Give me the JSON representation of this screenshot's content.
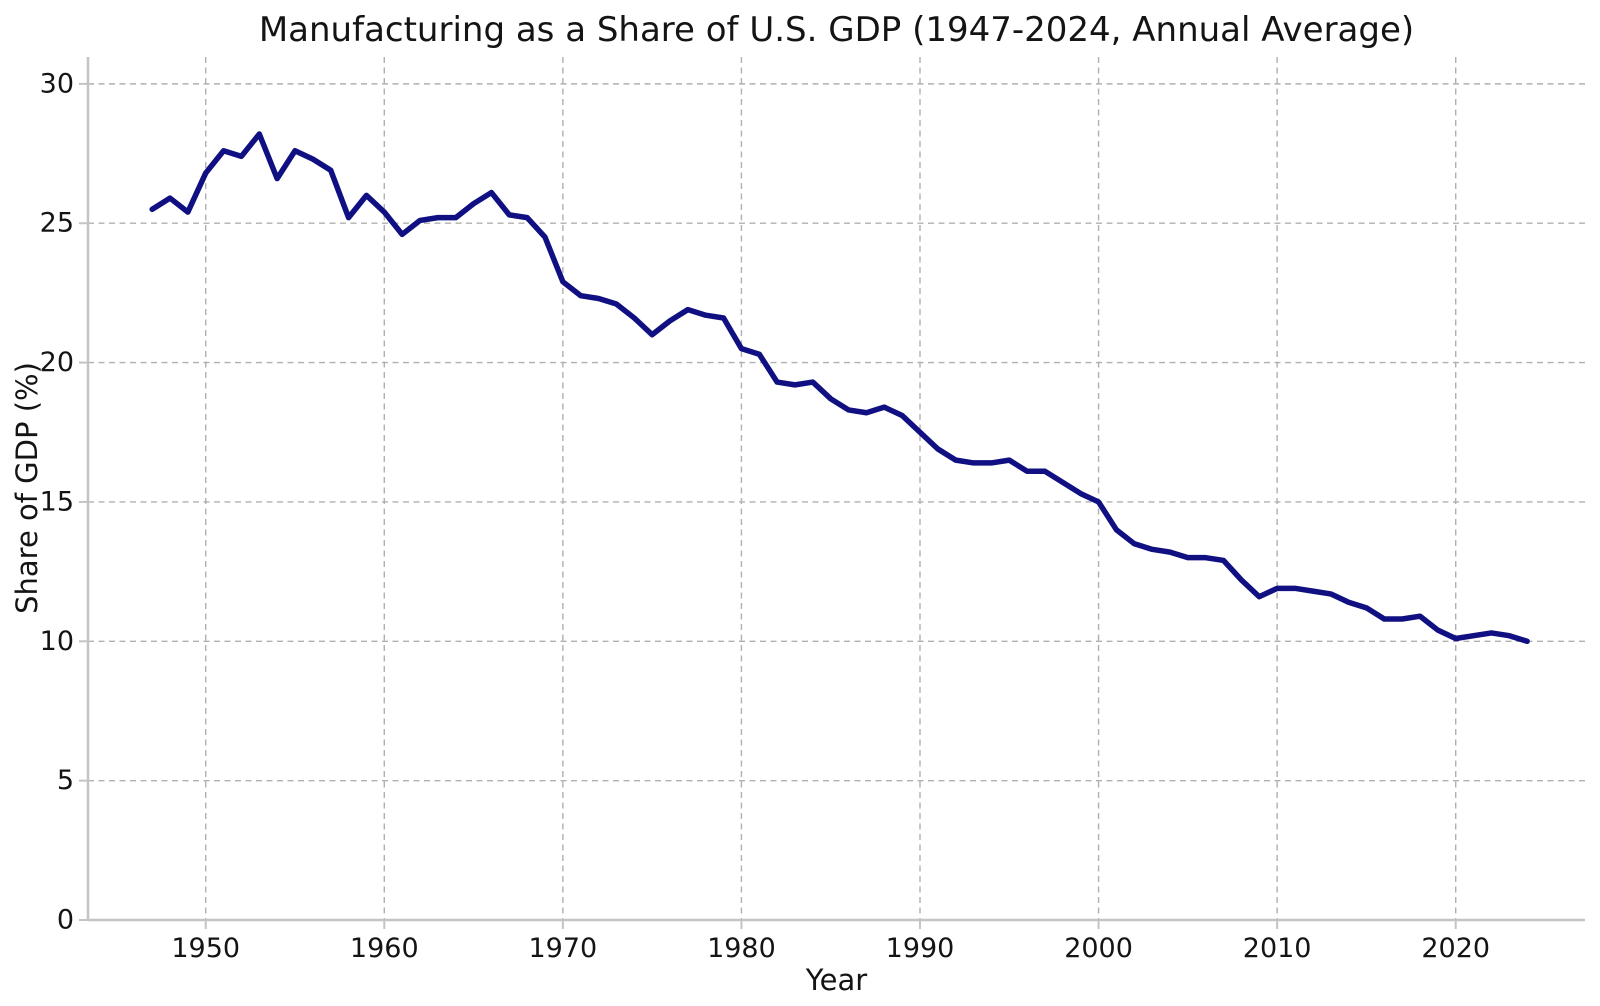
{
  "page": {
    "background": "#ffffff"
  },
  "chart_data": {
    "type": "line",
    "title": "Manufacturing as a Share of U.S. GDP (1947-2024, Annual Average)",
    "xlabel": "Year",
    "ylabel": "Share of GDP (%)",
    "years": [
      1947,
      1948,
      1949,
      1950,
      1951,
      1952,
      1953,
      1954,
      1955,
      1956,
      1957,
      1958,
      1959,
      1960,
      1961,
      1962,
      1963,
      1964,
      1965,
      1966,
      1967,
      1968,
      1969,
      1970,
      1971,
      1972,
      1973,
      1974,
      1975,
      1976,
      1977,
      1978,
      1979,
      1980,
      1981,
      1982,
      1983,
      1984,
      1985,
      1986,
      1987,
      1988,
      1989,
      1990,
      1991,
      1992,
      1993,
      1994,
      1995,
      1996,
      1997,
      1998,
      1999,
      2000,
      2001,
      2002,
      2003,
      2004,
      2005,
      2006,
      2007,
      2008,
      2009,
      2010,
      2011,
      2012,
      2013,
      2014,
      2015,
      2016,
      2017,
      2018,
      2019,
      2020,
      2021,
      2022,
      2023,
      2024
    ],
    "series": [
      {
        "name": "Manufacturing share of U.S. GDP (%)",
        "values": [
          25.5,
          25.9,
          25.4,
          26.8,
          27.6,
          27.4,
          28.2,
          26.6,
          27.6,
          27.3,
          26.9,
          25.2,
          26.0,
          25.4,
          24.6,
          25.1,
          25.2,
          25.2,
          25.7,
          26.1,
          25.3,
          25.2,
          24.5,
          22.9,
          22.4,
          22.3,
          22.1,
          21.6,
          21.0,
          21.5,
          21.9,
          21.7,
          21.6,
          20.5,
          20.3,
          19.3,
          19.2,
          19.3,
          18.7,
          18.3,
          18.2,
          18.4,
          18.1,
          17.5,
          16.9,
          16.5,
          16.4,
          16.4,
          16.5,
          16.1,
          16.1,
          15.7,
          15.3,
          15.0,
          14.0,
          13.5,
          13.3,
          13.2,
          13.0,
          13.0,
          12.9,
          12.2,
          11.6,
          11.9,
          11.9,
          11.8,
          11.7,
          11.4,
          11.2,
          10.8,
          10.8,
          10.9,
          10.4,
          10.1,
          10.2,
          10.3,
          10.2,
          10.0
        ]
      }
    ],
    "xticks": [
      1950,
      1960,
      1970,
      1980,
      1990,
      2000,
      2010,
      2020
    ],
    "yticks": [
      0,
      5,
      10,
      15,
      20,
      25,
      30
    ],
    "xlim": [
      1943.4,
      2027.2
    ],
    "ylim": [
      0,
      31
    ],
    "grid": true,
    "grid_style": "dashed",
    "legend": "none",
    "line_color": "#101082",
    "grid_color": "#b0b0b0",
    "axis_color": "#c4c4c4",
    "text_color": "#141414"
  }
}
